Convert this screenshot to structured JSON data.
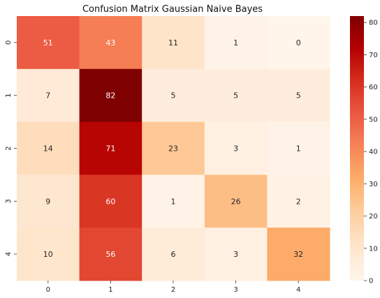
{
  "chart_data": {
    "type": "heatmap",
    "title": "Confusion Matrix Gaussian Naive Bayes",
    "xlabel": "",
    "ylabel": "",
    "x_categories": [
      "0",
      "1",
      "2",
      "3",
      "4"
    ],
    "y_categories": [
      "0",
      "1",
      "2",
      "3",
      "4"
    ],
    "values": [
      [
        51,
        43,
        11,
        1,
        0
      ],
      [
        7,
        82,
        5,
        5,
        5
      ],
      [
        14,
        71,
        23,
        3,
        1
      ],
      [
        9,
        60,
        1,
        26,
        2
      ],
      [
        10,
        56,
        6,
        3,
        32
      ]
    ],
    "colormap": "OrRd",
    "vmin": 0,
    "vmax": 82,
    "colorbar_ticks": [
      0,
      10,
      20,
      30,
      40,
      50,
      60,
      70,
      80
    ],
    "colorbar_tick_labels": [
      "0",
      "10",
      "20",
      "30",
      "40",
      "50",
      "60",
      "70",
      "80"
    ]
  }
}
